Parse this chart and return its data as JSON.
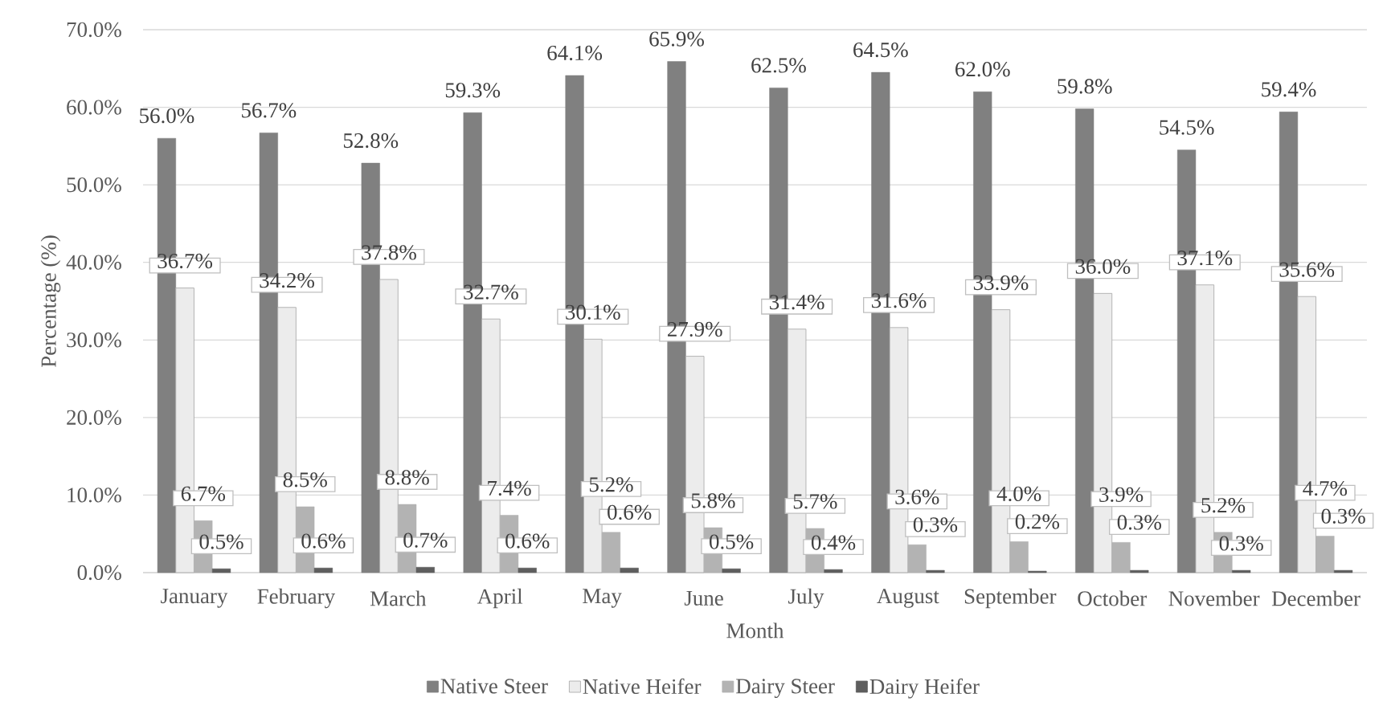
{
  "chart_data": {
    "type": "bar",
    "xlabel": "Month",
    "ylabel": "Percentage (%)",
    "categories": [
      "January",
      "February",
      "March",
      "April",
      "May",
      "June",
      "July",
      "August",
      "September",
      "October",
      "November",
      "December"
    ],
    "series": [
      {
        "name": "Native Steer",
        "color": "#808080",
        "values": [
          56.0,
          56.7,
          52.8,
          59.3,
          64.1,
          65.9,
          62.5,
          64.5,
          62.0,
          59.8,
          54.5,
          59.4
        ],
        "value_labels": [
          "56.0%",
          "56.7%",
          "52.8%",
          "59.3%",
          "64.1%",
          "65.9%",
          "62.5%",
          "64.5%",
          "62.0%",
          "59.8%",
          "54.5%",
          "59.4%"
        ]
      },
      {
        "name": "Native Heifer",
        "color": "#ececec",
        "values": [
          36.7,
          34.2,
          37.8,
          32.7,
          30.1,
          27.9,
          31.4,
          31.6,
          33.9,
          36.0,
          37.1,
          35.6
        ],
        "value_labels": [
          "36.7%",
          "34.2%",
          "37.8%",
          "32.7%",
          "30.1%",
          "27.9%",
          "31.4%",
          "31.6%",
          "33.9%",
          "36.0%",
          "37.1%",
          "35.6%"
        ]
      },
      {
        "name": "Dairy Steer",
        "color": "#b3b3b3",
        "values": [
          6.7,
          8.5,
          8.8,
          7.4,
          5.2,
          5.8,
          5.7,
          3.6,
          4.0,
          3.9,
          5.2,
          4.7
        ],
        "value_labels": [
          "6.7%",
          "8.5%",
          "8.8%",
          "7.4%",
          "5.2%",
          "5.8%",
          "5.7%",
          "3.6%",
          "4.0%",
          "3.9%",
          "5.2%",
          "4.7%"
        ]
      },
      {
        "name": "Dairy Heifer",
        "color": "#5e5e5e",
        "values": [
          0.5,
          0.6,
          0.7,
          0.6,
          0.6,
          0.5,
          0.4,
          0.3,
          0.2,
          0.3,
          0.3,
          0.3
        ],
        "value_labels": [
          "0.5%",
          "0.6%",
          "0.7%",
          "0.6%",
          "0.6%",
          "0.5%",
          "0.4%",
          "0.3%",
          "0.2%",
          "0.3%",
          "0.3%",
          "0.3%"
        ]
      }
    ],
    "ylim": [
      0,
      70
    ],
    "yticks": [
      {
        "value": 0,
        "label": "0.0%"
      },
      {
        "value": 10,
        "label": "10.0%"
      },
      {
        "value": 20,
        "label": "20.0%"
      },
      {
        "value": 30,
        "label": "30.0%"
      },
      {
        "value": 40,
        "label": "40.0%"
      },
      {
        "value": 50,
        "label": "50.0%"
      },
      {
        "value": 60,
        "label": "60.0%"
      },
      {
        "value": 70,
        "label": "70.0%"
      }
    ],
    "grid": "y",
    "legend": "bottom"
  }
}
